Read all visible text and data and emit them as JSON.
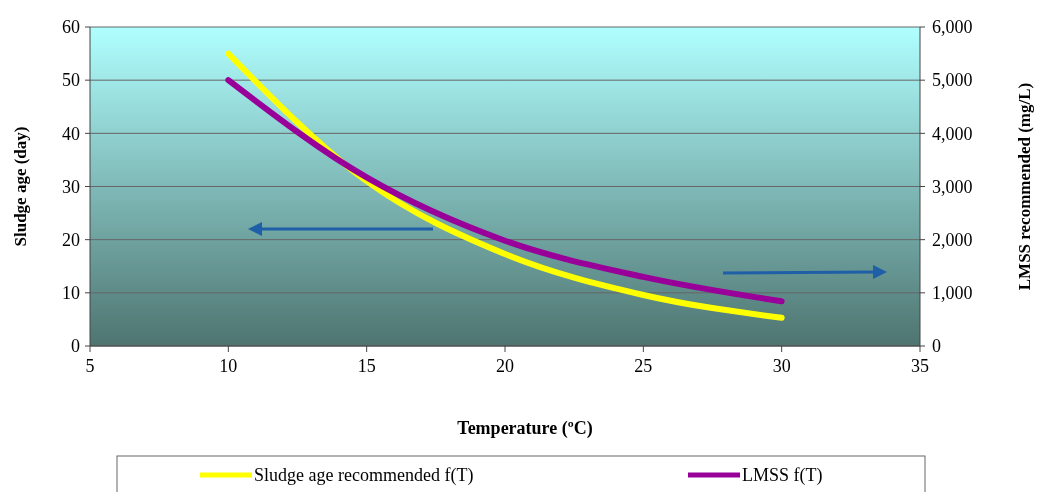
{
  "chart_data": {
    "type": "line",
    "xlabel": "Temperature (ºC)",
    "ylabel": "Sludge age (day)",
    "y2label": "LMSS recommended (mg/L)",
    "x": [
      10,
      15,
      20,
      25,
      30
    ],
    "series": [
      {
        "name": "Sludge age recommended f(T)",
        "color": "#ffff00",
        "values": [
          55,
          31,
          17.3,
          9.6,
          5.3
        ]
      },
      {
        "name": "LMSS f(T)",
        "color": "#990099",
        "values": [
          5000,
          3170,
          1980,
          1300,
          840
        ],
        "axis": "y2"
      }
    ],
    "xlim": [
      5,
      35
    ],
    "xticks": [
      5,
      10,
      15,
      20,
      25,
      30,
      35
    ],
    "ylim": [
      0,
      60
    ],
    "yticks": [
      0,
      10,
      20,
      30,
      40,
      50,
      60
    ],
    "y2lim": [
      0,
      6000
    ],
    "y2ticks": [
      {
        "value": 0,
        "label": "0"
      },
      {
        "value": 1000,
        "label": "1,000"
      },
      {
        "value": 2000,
        "label": "2,000"
      },
      {
        "value": 3000,
        "label": "3,000"
      },
      {
        "value": 4000,
        "label": "4,000"
      },
      {
        "value": 5000,
        "label": "5,000"
      },
      {
        "value": 6000,
        "label": "6,000"
      }
    ],
    "grid": "y",
    "legend": "bottom",
    "marker": "none",
    "line_style": "solid"
  }
}
